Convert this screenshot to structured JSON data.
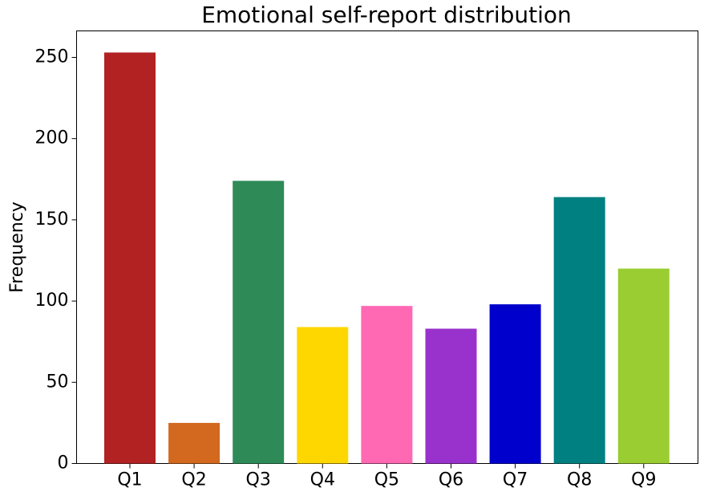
{
  "chart_data": {
    "type": "bar",
    "title": "Emotional self-report distribution",
    "y_label": "Frequency",
    "categories": [
      "Q1",
      "Q2",
      "Q3",
      "Q4",
      "Q5",
      "Q6",
      "Q7",
      "Q8",
      "Q9"
    ],
    "values": [
      253,
      25,
      174,
      84,
      97,
      83,
      98,
      164,
      120
    ],
    "colors": [
      "#b22222",
      "#d2691e",
      "#2e8b57",
      "#ffd700",
      "#ff69b4",
      "#9932cc",
      "#0000cd",
      "#008080",
      "#9acd32"
    ],
    "ylim": [
      0,
      266.3
    ],
    "yticks": [
      0,
      50,
      100,
      150,
      200,
      250
    ],
    "grid": false
  }
}
